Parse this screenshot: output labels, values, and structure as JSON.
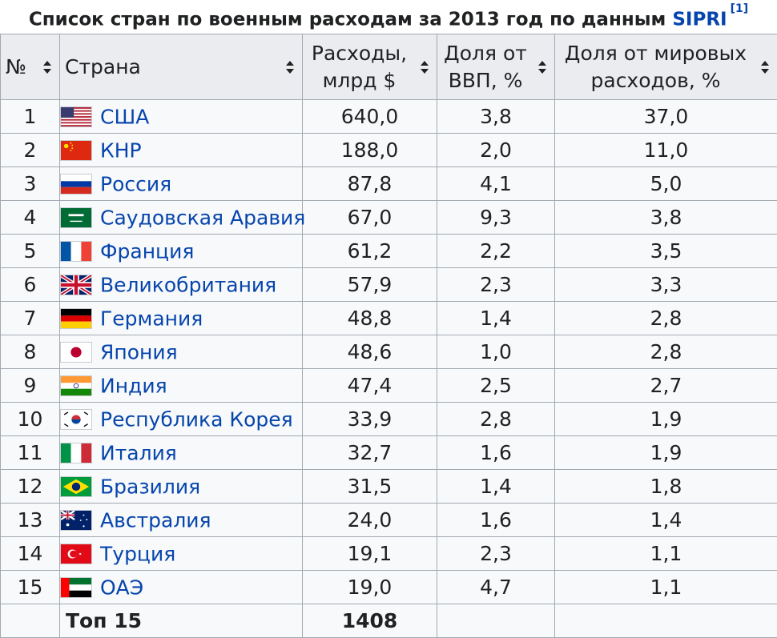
{
  "caption": {
    "text": "Список стран по военным расходам за 2013 год по данным ",
    "source": "SIPRI",
    "ref": "[1]"
  },
  "headers": {
    "rank": "№",
    "country": "Страна",
    "spending_line1": "Расходы,",
    "spending_line2": "млрд $",
    "gdp_line1": "Доля от",
    "gdp_line2": "ВВП, %",
    "world_line1": "Доля от мировых",
    "world_line2": "расходов, %"
  },
  "rows": [
    {
      "rank": "1",
      "country": "США",
      "flag": "usa-flag-icon",
      "spending": "640,0",
      "gdp": "3,8",
      "world": "37,0"
    },
    {
      "rank": "2",
      "country": "КНР",
      "flag": "china-flag-icon",
      "spending": "188,0",
      "gdp": "2,0",
      "world": "11,0"
    },
    {
      "rank": "3",
      "country": "Россия",
      "flag": "russia-flag-icon",
      "spending": "87,8",
      "gdp": "4,1",
      "world": "5,0"
    },
    {
      "rank": "4",
      "country": "Саудовская Аравия",
      "flag": "saudi-arabia-flag-icon",
      "spending": "67,0",
      "gdp": "9,3",
      "world": "3,8"
    },
    {
      "rank": "5",
      "country": "Франция",
      "flag": "france-flag-icon",
      "spending": "61,2",
      "gdp": "2,2",
      "world": "3,5"
    },
    {
      "rank": "6",
      "country": "Великобритания",
      "flag": "uk-flag-icon",
      "spending": "57,9",
      "gdp": "2,3",
      "world": "3,3"
    },
    {
      "rank": "7",
      "country": "Германия",
      "flag": "germany-flag-icon",
      "spending": "48,8",
      "gdp": "1,4",
      "world": "2,8"
    },
    {
      "rank": "8",
      "country": "Япония",
      "flag": "japan-flag-icon",
      "spending": "48,6",
      "gdp": "1,0",
      "world": "2,8"
    },
    {
      "rank": "9",
      "country": "Индия",
      "flag": "india-flag-icon",
      "spending": "47,4",
      "gdp": "2,5",
      "world": "2,7"
    },
    {
      "rank": "10",
      "country": "Республика Корея",
      "flag": "south-korea-flag-icon",
      "spending": "33,9",
      "gdp": "2,8",
      "world": "1,9"
    },
    {
      "rank": "11",
      "country": "Италия",
      "flag": "italy-flag-icon",
      "spending": "32,7",
      "gdp": "1,6",
      "world": "1,9"
    },
    {
      "rank": "12",
      "country": "Бразилия",
      "flag": "brazil-flag-icon",
      "spending": "31,5",
      "gdp": "1,4",
      "world": "1,8"
    },
    {
      "rank": "13",
      "country": "Австралия",
      "flag": "australia-flag-icon",
      "spending": "24,0",
      "gdp": "1,6",
      "world": "1,4"
    },
    {
      "rank": "14",
      "country": "Турция",
      "flag": "turkey-flag-icon",
      "spending": "19,1",
      "gdp": "2,3",
      "world": "1,1"
    },
    {
      "rank": "15",
      "country": "ОАЭ",
      "flag": "uae-flag-icon",
      "spending": "19,0",
      "gdp": "4,7",
      "world": "1,1"
    }
  ],
  "total": {
    "label": "Топ 15",
    "spending": "1408"
  },
  "colors": {
    "link": "#0645ad",
    "header_bg": "#eaecf0",
    "cell_bg": "#f8f9fa",
    "border": "#a2a9b1"
  }
}
